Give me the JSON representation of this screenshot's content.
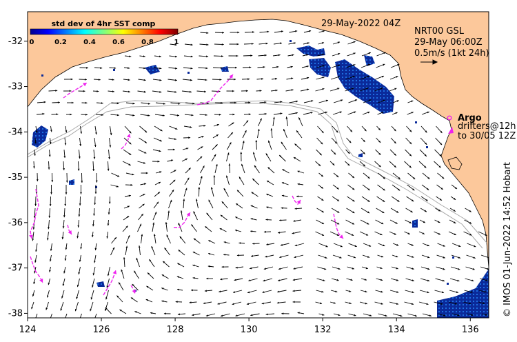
{
  "map": {
    "x_range": [
      124,
      136.5
    ],
    "y_range": [
      -38.1,
      -31.35
    ],
    "x_ticks": [
      124,
      126,
      128,
      130,
      132,
      134,
      136
    ],
    "y_ticks": [
      -32,
      -33,
      -34,
      -35,
      -36,
      -37,
      -38
    ],
    "x_tick_labels": [
      "124",
      "126",
      "128",
      "130",
      "132",
      "134",
      "136"
    ],
    "y_tick_labels": [
      "-32",
      "-33",
      "-34",
      "-35",
      "-36",
      "-37",
      "-38"
    ],
    "date_label": "29-May-2022 04Z",
    "product": {
      "line1": "NRT00 GSL",
      "line2": "29-May 06:00Z",
      "line3": "0.5m/s (1kt 24h)"
    },
    "legend": {
      "argo_label": "Argo",
      "drifters_label": "drifters@12h",
      "drifters_label2": "to 30/05 12Z"
    },
    "credit": "© IMOS 01-Jun-2022 14:52 Hobart"
  },
  "colorbar": {
    "title": "std dev of 4hr SST comp",
    "tick_labels": [
      "0",
      "0.2",
      "0.4",
      "0.6",
      "0.8",
      "1"
    ]
  },
  "colors": {
    "land": "#fcc89b",
    "sst_dense": "#0a2a9a",
    "drifter": "#ee22ee",
    "arrow": "#000000",
    "bathy": "#a8a8a8"
  }
}
